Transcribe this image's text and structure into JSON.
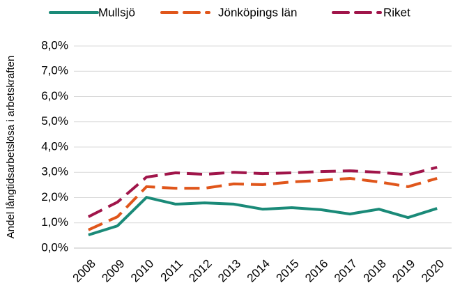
{
  "chart_data": {
    "type": "line",
    "y_label": "Andel långtidsarbetslösa i arbetskraften",
    "categories": [
      "2008",
      "2009",
      "2010",
      "2011",
      "2012",
      "2013",
      "2014",
      "2015",
      "2016",
      "2017",
      "2018",
      "2019",
      "2020"
    ],
    "series": [
      {
        "name": "Mullsjö",
        "color": "#1a8a78",
        "dash": "solid",
        "values": [
          0.52,
          0.88,
          2.01,
          1.74,
          1.79,
          1.74,
          1.54,
          1.6,
          1.52,
          1.35,
          1.54,
          1.21,
          1.57
        ]
      },
      {
        "name": "Jönköpings län",
        "color": "#e0561b",
        "dash": "dashed",
        "values": [
          0.72,
          1.24,
          2.43,
          2.37,
          2.37,
          2.54,
          2.51,
          2.62,
          2.68,
          2.76,
          2.62,
          2.43,
          2.76
        ]
      },
      {
        "name": "Riket",
        "color": "#a0154a",
        "dash": "dashed",
        "values": [
          1.24,
          1.82,
          2.81,
          2.98,
          2.92,
          3.0,
          2.95,
          2.98,
          3.03,
          3.06,
          3.0,
          2.9,
          3.2
        ]
      }
    ],
    "ylim": [
      0,
      8
    ],
    "yticks": [
      {
        "value": 0,
        "label": "0,0%"
      },
      {
        "value": 1,
        "label": "1,0%"
      },
      {
        "value": 2,
        "label": "2,0%"
      },
      {
        "value": 3,
        "label": "3,0%"
      },
      {
        "value": 4,
        "label": "4,0%"
      },
      {
        "value": 5,
        "label": "5,0%"
      },
      {
        "value": 6,
        "label": "6,0%"
      },
      {
        "value": 7,
        "label": "7,0%"
      },
      {
        "value": 8,
        "label": "8,0%"
      }
    ],
    "grid": true,
    "legend": "top"
  }
}
